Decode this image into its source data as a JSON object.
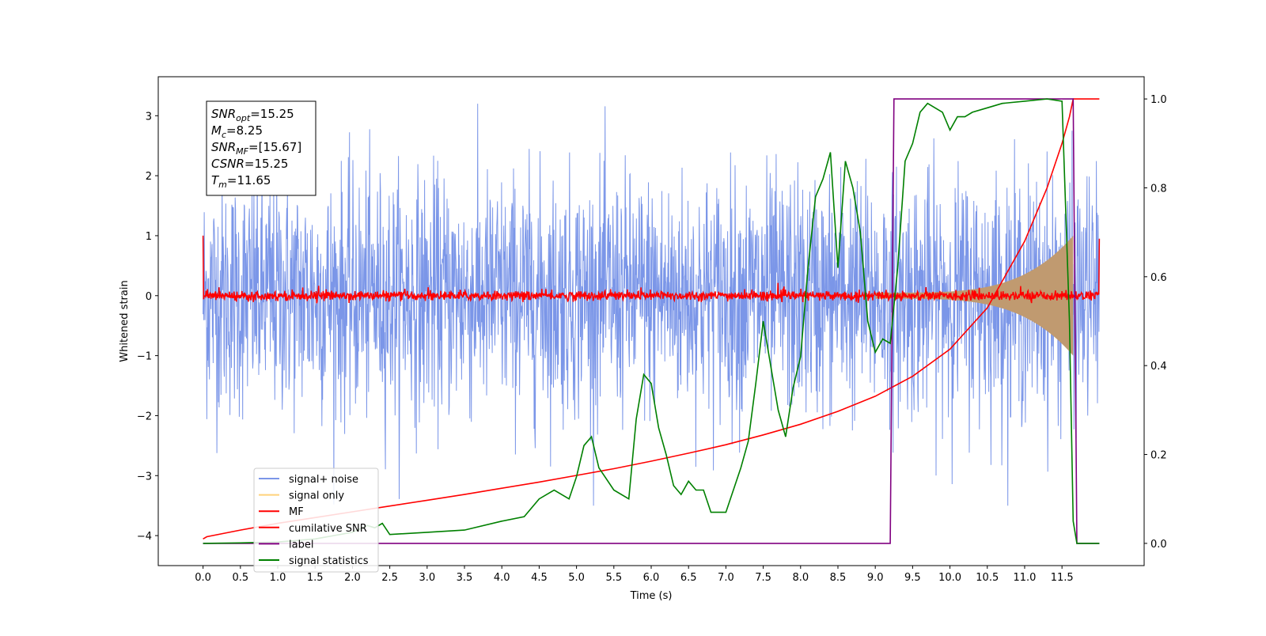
{
  "chart_data": {
    "type": "line",
    "xlabel": "Time (s)",
    "ylabel": "Whitened strain",
    "xlim": [
      -0.6,
      12.6
    ],
    "ylim": [
      -4.5,
      3.65
    ],
    "y2lim": [
      -0.05,
      1.05
    ],
    "x_ticks": [
      0.0,
      0.5,
      1.0,
      1.5,
      2.0,
      2.5,
      3.0,
      3.5,
      4.0,
      4.5,
      5.0,
      5.5,
      6.0,
      6.5,
      7.0,
      7.5,
      8.0,
      8.5,
      9.0,
      9.5,
      10.0,
      10.5,
      11.0,
      11.5
    ],
    "x_tick_labels": [
      "0.0",
      "0.5",
      "1.0",
      "1.5",
      "2.0",
      "2.5",
      "3.0",
      "3.5",
      "4.0",
      "4.5",
      "5.0",
      "5.5",
      "6.0",
      "6.5",
      "7.0",
      "7.5",
      "8.0",
      "8.5",
      "9.0",
      "9.5",
      "10.0",
      "10.5",
      "11.0",
      "11.5"
    ],
    "y_ticks": [
      -4,
      -3,
      -2,
      -1,
      0,
      1,
      2,
      3
    ],
    "y_tick_labels": [
      "−4",
      "−3",
      "−2",
      "−1",
      "0",
      "1",
      "2",
      "3"
    ],
    "y2_ticks": [
      0.0,
      0.2,
      0.4,
      0.6,
      0.8,
      1.0
    ],
    "y2_tick_labels": [
      "0.0",
      "0.2",
      "0.4",
      "0.6",
      "0.8",
      "1.0"
    ],
    "grid": false,
    "legend_position": "lower-left",
    "annotation": {
      "lines": [
        {
          "main": "SNR",
          "sub": "opt",
          "value": "=15.25"
        },
        {
          "main": "M",
          "sub": "c",
          "value": "=8.25"
        },
        {
          "main": "SNR",
          "sub": "MF",
          "value": "=[15.67]"
        },
        {
          "main": "CSNR",
          "sub": "",
          "value": "=15.25"
        },
        {
          "main": "T",
          "sub": "m",
          "value": "=11.65"
        }
      ]
    },
    "series": [
      {
        "name": "signal+ noise",
        "color": "#7b96e8",
        "axis": "left",
        "kind": "noise",
        "x_range": [
          0.0,
          12.0
        ],
        "amplitude_sigma": 1.0,
        "peaks_range": [
          -3.5,
          3.2
        ]
      },
      {
        "name": "signal only",
        "color": "#ffd27a",
        "axis": "left",
        "kind": "chirp_envelope",
        "x_range": [
          9.0,
          11.65
        ],
        "envelope_start": 0.05,
        "envelope_end": 1.0
      },
      {
        "name": "MF",
        "color": "#ff0000",
        "axis": "left",
        "kind": "mf_noise",
        "x_range": [
          0.0,
          12.0
        ],
        "level": 0.0,
        "sigma": 0.04,
        "start_value": 1.0,
        "end_value": 0.95
      },
      {
        "name": "cumilative SNR",
        "color": "#ff0000",
        "axis": "right",
        "x": [
          0.0,
          0.05,
          0.5,
          1.0,
          1.5,
          2.0,
          2.5,
          3.0,
          3.5,
          4.0,
          4.5,
          5.0,
          5.5,
          6.0,
          6.5,
          7.0,
          7.5,
          8.0,
          8.5,
          9.0,
          9.5,
          10.0,
          10.5,
          11.0,
          11.3,
          11.5,
          11.6,
          11.65,
          11.66,
          12.0
        ],
        "y": [
          0.01,
          0.015,
          0.03,
          0.045,
          0.058,
          0.071,
          0.084,
          0.097,
          0.11,
          0.124,
          0.138,
          0.153,
          0.168,
          0.185,
          0.203,
          0.222,
          0.244,
          0.268,
          0.297,
          0.331,
          0.376,
          0.437,
          0.53,
          0.68,
          0.8,
          0.9,
          0.96,
          1.0,
          1.0,
          1.0
        ]
      },
      {
        "name": "label",
        "color": "#800080",
        "axis": "right",
        "x": [
          0.0,
          9.2,
          9.25,
          11.65,
          11.7,
          12.0
        ],
        "y": [
          0.0,
          0.0,
          1.0,
          1.0,
          0.0,
          0.0
        ]
      },
      {
        "name": "signal statistics",
        "color": "#008000",
        "axis": "right",
        "x": [
          0.0,
          0.5,
          1.0,
          1.5,
          2.0,
          2.2,
          2.3,
          2.4,
          2.5,
          3.0,
          3.5,
          4.0,
          4.3,
          4.5,
          4.7,
          4.9,
          5.0,
          5.1,
          5.2,
          5.3,
          5.5,
          5.7,
          5.8,
          5.9,
          6.0,
          6.1,
          6.2,
          6.3,
          6.4,
          6.5,
          6.6,
          6.7,
          6.8,
          7.0,
          7.2,
          7.3,
          7.4,
          7.5,
          7.6,
          7.7,
          7.8,
          7.9,
          8.0,
          8.1,
          8.2,
          8.3,
          8.4,
          8.5,
          8.6,
          8.7,
          8.8,
          8.9,
          9.0,
          9.1,
          9.2,
          9.3,
          9.4,
          9.5,
          9.6,
          9.7,
          9.8,
          9.9,
          10.0,
          10.1,
          10.2,
          10.3,
          10.5,
          10.7,
          11.0,
          11.3,
          11.5,
          11.6,
          11.65,
          11.7,
          11.75,
          11.8,
          12.0
        ],
        "y": [
          0.0,
          0.001,
          0.003,
          0.01,
          0.025,
          0.04,
          0.035,
          0.045,
          0.02,
          0.025,
          0.03,
          0.05,
          0.06,
          0.1,
          0.12,
          0.1,
          0.15,
          0.22,
          0.24,
          0.17,
          0.12,
          0.1,
          0.28,
          0.38,
          0.36,
          0.26,
          0.2,
          0.13,
          0.11,
          0.14,
          0.12,
          0.12,
          0.07,
          0.07,
          0.17,
          0.23,
          0.36,
          0.5,
          0.4,
          0.3,
          0.24,
          0.35,
          0.42,
          0.62,
          0.78,
          0.82,
          0.88,
          0.62,
          0.86,
          0.8,
          0.7,
          0.5,
          0.43,
          0.46,
          0.45,
          0.62,
          0.86,
          0.9,
          0.97,
          0.99,
          0.98,
          0.97,
          0.93,
          0.96,
          0.96,
          0.97,
          0.98,
          0.99,
          0.995,
          1.0,
          0.995,
          0.5,
          0.05,
          0.0,
          0.0,
          0.0,
          0.0
        ]
      }
    ]
  }
}
